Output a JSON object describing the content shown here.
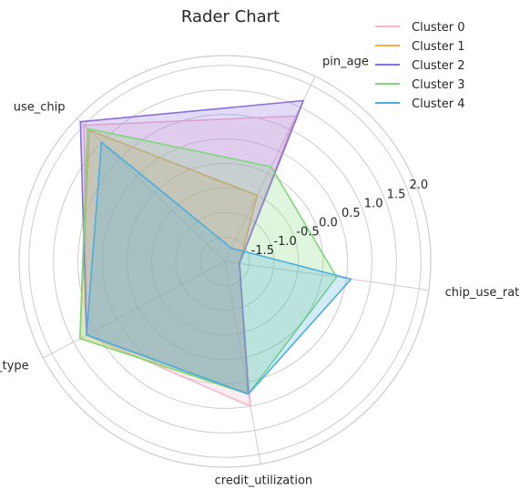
{
  "chart_data": {
    "type": "radar",
    "title": "Rader Chart",
    "axes": [
      "chip_use_ratio",
      "pin_age",
      "use_chip",
      "card_type",
      "credit_utilization"
    ],
    "rlim": [
      -2.0,
      2.2
    ],
    "ticks": [
      -1.5,
      -1.0,
      -0.5,
      0.0,
      0.5,
      1.0,
      1.5,
      2.0
    ],
    "tick_labels": [
      "-1.5",
      "-1.0",
      "-0.5",
      "0.0",
      "0.5",
      "1.0",
      "1.5",
      "2.0"
    ],
    "grid": true,
    "legend_position": "top-right",
    "series": [
      {
        "name": "Cluster 0",
        "color": "#f4b6c8",
        "values": [
          -1.7,
          1.3,
          2.0,
          1.2,
          1.0
        ]
      },
      {
        "name": "Cluster 1",
        "color": "#f2b04c",
        "values": [
          -1.7,
          -0.5,
          1.85,
          1.35,
          0.75
        ]
      },
      {
        "name": "Cluster 2",
        "color": "#8a6ddf",
        "values": [
          -1.7,
          1.65,
          2.1,
          1.2,
          0.75
        ]
      },
      {
        "name": "Cluster 3",
        "color": "#7ed87a",
        "values": [
          0.3,
          0.15,
          1.9,
          1.35,
          0.75
        ]
      },
      {
        "name": "Cluster 4",
        "color": "#4aaee0",
        "values": [
          0.6,
          -1.7,
          1.5,
          1.2,
          0.75
        ]
      }
    ]
  }
}
